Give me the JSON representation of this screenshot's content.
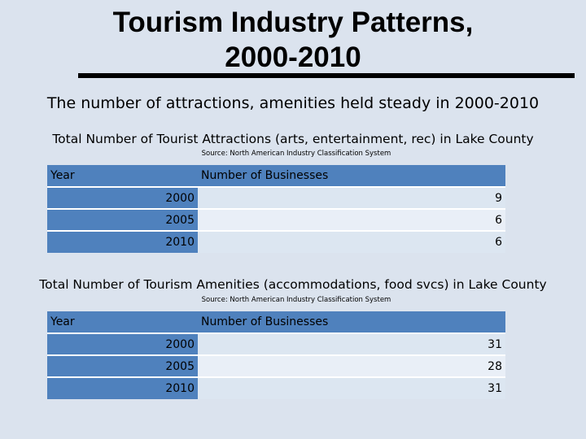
{
  "title_line1": "Tourism Industry Patterns,",
  "title_line2": "2000-2010",
  "subtitle": "The number of attractions, amenities held steady in 2000-2010",
  "tables": [
    {
      "title": "Total Number of Tourist Attractions (arts, entertainment, rec) in Lake County",
      "source": "Source: North American Industry Classification System",
      "col_year": "Year",
      "col_value": "Number of Businesses",
      "rows": [
        {
          "year": "2000",
          "value": "9"
        },
        {
          "year": "2005",
          "value": "6"
        },
        {
          "year": "2010",
          "value": "6"
        }
      ]
    },
    {
      "title": "Total Number of Tourism Amenities (accommodations, food svcs) in Lake County",
      "source": "Source: North American Industry Classification System",
      "col_year": "Year",
      "col_value": "Number of Businesses",
      "rows": [
        {
          "year": "2000",
          "value": "31"
        },
        {
          "year": "2005",
          "value": "28"
        },
        {
          "year": "2010",
          "value": "31"
        }
      ]
    }
  ]
}
